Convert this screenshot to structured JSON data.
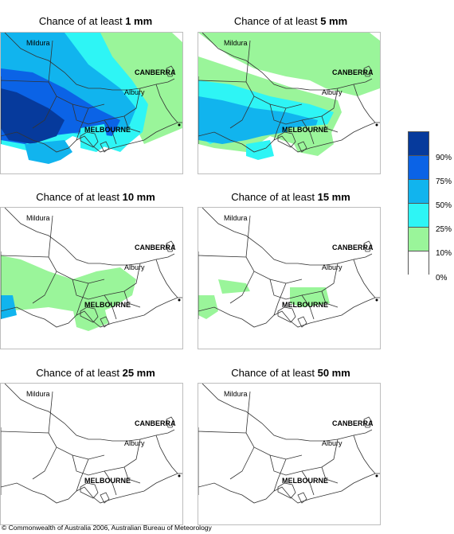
{
  "panels": [
    {
      "prefix": "Chance of at least ",
      "amount": "1 mm"
    },
    {
      "prefix": "Chance of at least ",
      "amount": "5 mm"
    },
    {
      "prefix": "Chance of at least ",
      "amount": "10 mm"
    },
    {
      "prefix": "Chance of at least ",
      "amount": "15 mm"
    },
    {
      "prefix": "Chance of at least ",
      "amount": "25 mm"
    },
    {
      "prefix": "Chance of at least ",
      "amount": "50 mm"
    }
  ],
  "places": {
    "mildura": "Mildura",
    "canberra": "CANBERRA",
    "albury": "Albury",
    "melbourne": "MELBOURNE"
  },
  "legend": {
    "labels": [
      "90%",
      "75%",
      "50%",
      "25%",
      "10%",
      "0%"
    ],
    "colors": [
      "#063a9c",
      "#0b63e6",
      "#11b4ee",
      "#2ef5f5",
      "#9af59a",
      "#ffffff"
    ]
  },
  "footer": "© Commonwealth of Australia 2006, Australian Bureau of Meteorology"
}
